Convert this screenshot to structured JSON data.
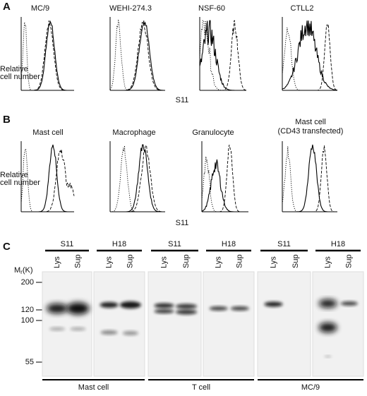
{
  "panel_labels": [
    "A",
    "B",
    "C"
  ],
  "panel_a": {
    "titles": [
      "MC/9",
      "WEHI-274.3",
      "NSF-60",
      "CTLL2"
    ],
    "y_label_lines": [
      "Relative",
      "cell number"
    ],
    "x_label": "S11"
  },
  "panel_b": {
    "titles": [
      "Mast cell",
      "Macrophage",
      "Granulocyte"
    ],
    "last_title_lines": [
      "Mast cell",
      "(CD43 transfected)"
    ],
    "y_label_lines": [
      "Relative",
      "cell number"
    ],
    "x_label": "S11"
  },
  "panel_c": {
    "mw_symbol": "M",
    "mw_subscript": "r",
    "mw_unit": "(K)",
    "mw_markers": [
      200,
      120,
      100,
      55
    ],
    "antibodies": [
      "S11",
      "H18",
      "S11",
      "H18",
      "S11",
      "H18"
    ],
    "lanes": [
      "Lys",
      "Sup"
    ],
    "cell_types": [
      "Mast cell",
      "T cell",
      "MC/9"
    ]
  }
}
